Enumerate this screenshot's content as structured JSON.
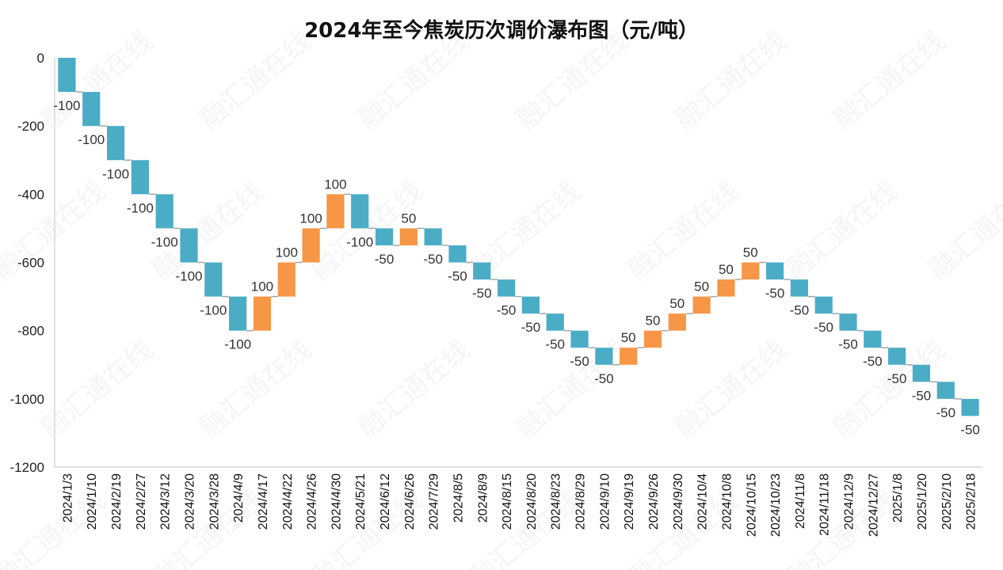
{
  "chart_data": {
    "type": "waterfall",
    "title": "2024年至今焦炭历次调价瀑布图（元/吨）",
    "categories": [
      "2024/1/3",
      "2024/1/10",
      "2024/2/19",
      "2024/2/27",
      "2024/3/12",
      "2024/3/20",
      "2024/3/28",
      "2024/4/9",
      "2024/4/17",
      "2024/4/22",
      "2024/4/26",
      "2024/4/30",
      "2024/5/21",
      "2024/6/12",
      "2024/6/26",
      "2024/7/29",
      "2024/8/5",
      "2024/8/9",
      "2024/8/15",
      "2024/8/20",
      "2024/8/23",
      "2024/8/29",
      "2024/9/10",
      "2024/9/19",
      "2024/9/26",
      "2024/9/30",
      "2024/10/4",
      "2024/10/8",
      "2024/10/15",
      "2024/10/23",
      "2024/11/8",
      "2024/11/18",
      "2024/12/9",
      "2024/12/27",
      "2025/1/8",
      "2025/1/20",
      "2025/2/10",
      "2025/2/18"
    ],
    "values": [
      -100,
      -100,
      -100,
      -100,
      -100,
      -100,
      -100,
      -100,
      100,
      100,
      100,
      100,
      -100,
      -50,
      50,
      -50,
      -50,
      -50,
      -50,
      -50,
      -50,
      -50,
      -50,
      50,
      50,
      50,
      50,
      50,
      50,
      -50,
      -50,
      -50,
      -50,
      -50,
      -50,
      -50,
      -50,
      -50
    ],
    "labels": [
      "-100",
      "-100",
      "-100",
      "-100",
      "-100",
      "-100",
      "-100",
      "-100",
      "100",
      "100",
      "100",
      "100",
      "-100",
      "-50",
      "50",
      "-50",
      "-50",
      "-50",
      "-50",
      "-50",
      "-50",
      "-50",
      "-50",
      "50",
      "50",
      "50",
      "50",
      "50",
      "50",
      "-50",
      "-50",
      "-50",
      "-50",
      "-50",
      "-50",
      "-50",
      "-50",
      "-50"
    ],
    "ylim": [
      -1200,
      0
    ],
    "yticks": [
      0,
      -200,
      -400,
      -600,
      -800,
      -1000,
      -1200
    ],
    "ytick_labels": [
      "0",
      "-200",
      "-400",
      "-600",
      "-800",
      "-1000",
      "-1200"
    ],
    "colors": {
      "decrease": "#4bacc6",
      "increase": "#f79646",
      "connector": "#a6a6a6",
      "axis": "#d9d9d9"
    },
    "grid": false,
    "legend": "none"
  },
  "watermark": "融汇通在线"
}
